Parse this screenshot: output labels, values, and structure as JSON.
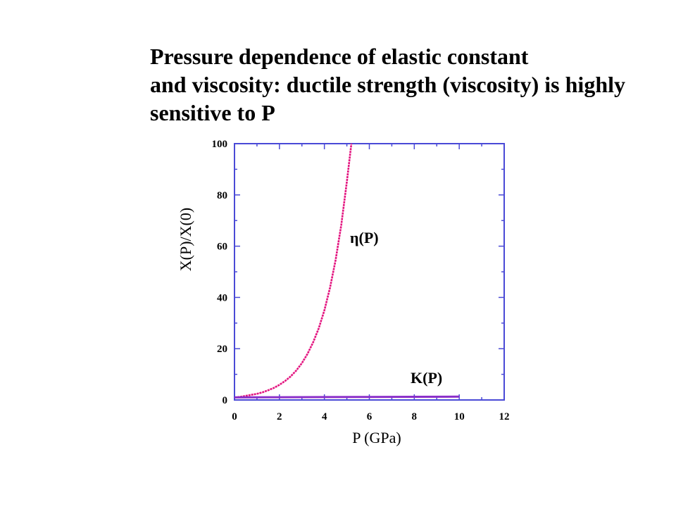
{
  "heading": {
    "lines": [
      "Pressure dependence of elastic constant",
      "and viscosity: ductile strength (viscosity) is highly",
      "sensitive to P"
    ]
  },
  "colors": {
    "background": "#ffffff",
    "text": "#000000",
    "axis": "#4a4ad6"
  },
  "chart_data": {
    "type": "line",
    "xlabel": "P (GPa)",
    "ylabel": "X(P)/X(0)",
    "xlim": [
      0,
      12
    ],
    "ylim": [
      0,
      100
    ],
    "xticks": [
      0,
      2,
      4,
      6,
      8,
      10,
      12
    ],
    "xtick_labels": [
      "0",
      "2",
      "4",
      "6",
      "8",
      "10",
      "12"
    ],
    "yticks": [
      0,
      20,
      40,
      60,
      80,
      100
    ],
    "ytick_labels": [
      "0",
      "20",
      "40",
      "60",
      "80",
      "100"
    ],
    "grid": false,
    "series": [
      {
        "name": "η(P)",
        "color": "#e3147f",
        "x": [
          0,
          0.25,
          0.5,
          0.75,
          1,
          1.25,
          1.5,
          1.75,
          2,
          2.25,
          2.5,
          2.75,
          3,
          3.25,
          3.5,
          3.75,
          4,
          4.25,
          4.5,
          4.75,
          5,
          5.2
        ],
        "y": [
          1.0,
          1.2,
          1.6,
          2.0,
          2.4,
          3.0,
          3.8,
          4.7,
          5.9,
          7.4,
          9.2,
          11.5,
          14.4,
          18.0,
          22.5,
          28.0,
          35.0,
          43.7,
          54.6,
          68.2,
          85.2,
          100
        ]
      },
      {
        "name": "K(P)",
        "color": "#8b2fc9",
        "x": [
          0,
          2,
          4,
          6,
          8,
          10
        ],
        "y": [
          1.0,
          1.06,
          1.12,
          1.18,
          1.24,
          1.3
        ]
      }
    ]
  }
}
